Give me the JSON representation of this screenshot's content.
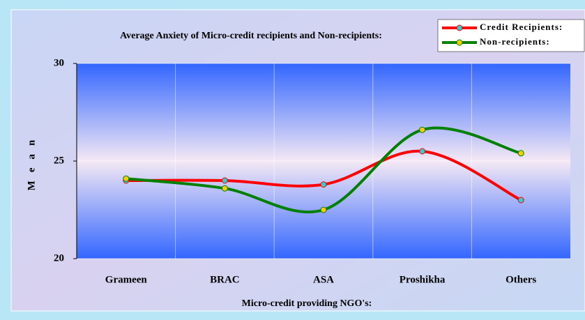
{
  "chart_data": {
    "type": "line",
    "title": "Average Anxiety of Micro-credit recipients and Non-recipients:",
    "x_label": "Micro-credit providing NGO's:",
    "y_label": "Mean",
    "categories": [
      "Grameen",
      "BRAC",
      "ASA",
      "Proshikha",
      "Others"
    ],
    "series": [
      {
        "name": "Credit Recipients:",
        "color": "#ff0000",
        "marker_color": "#33cccc",
        "values": [
          24.0,
          24.0,
          23.8,
          25.5,
          23.0
        ]
      },
      {
        "name": "Non-recipients:",
        "color": "#008000",
        "marker_color": "#ffcc00",
        "values": [
          24.1,
          23.6,
          22.5,
          26.6,
          25.4
        ]
      }
    ],
    "ylim": [
      20,
      30
    ],
    "yticks": [
      20,
      25,
      30
    ],
    "grid": true,
    "legend": "top-right"
  }
}
